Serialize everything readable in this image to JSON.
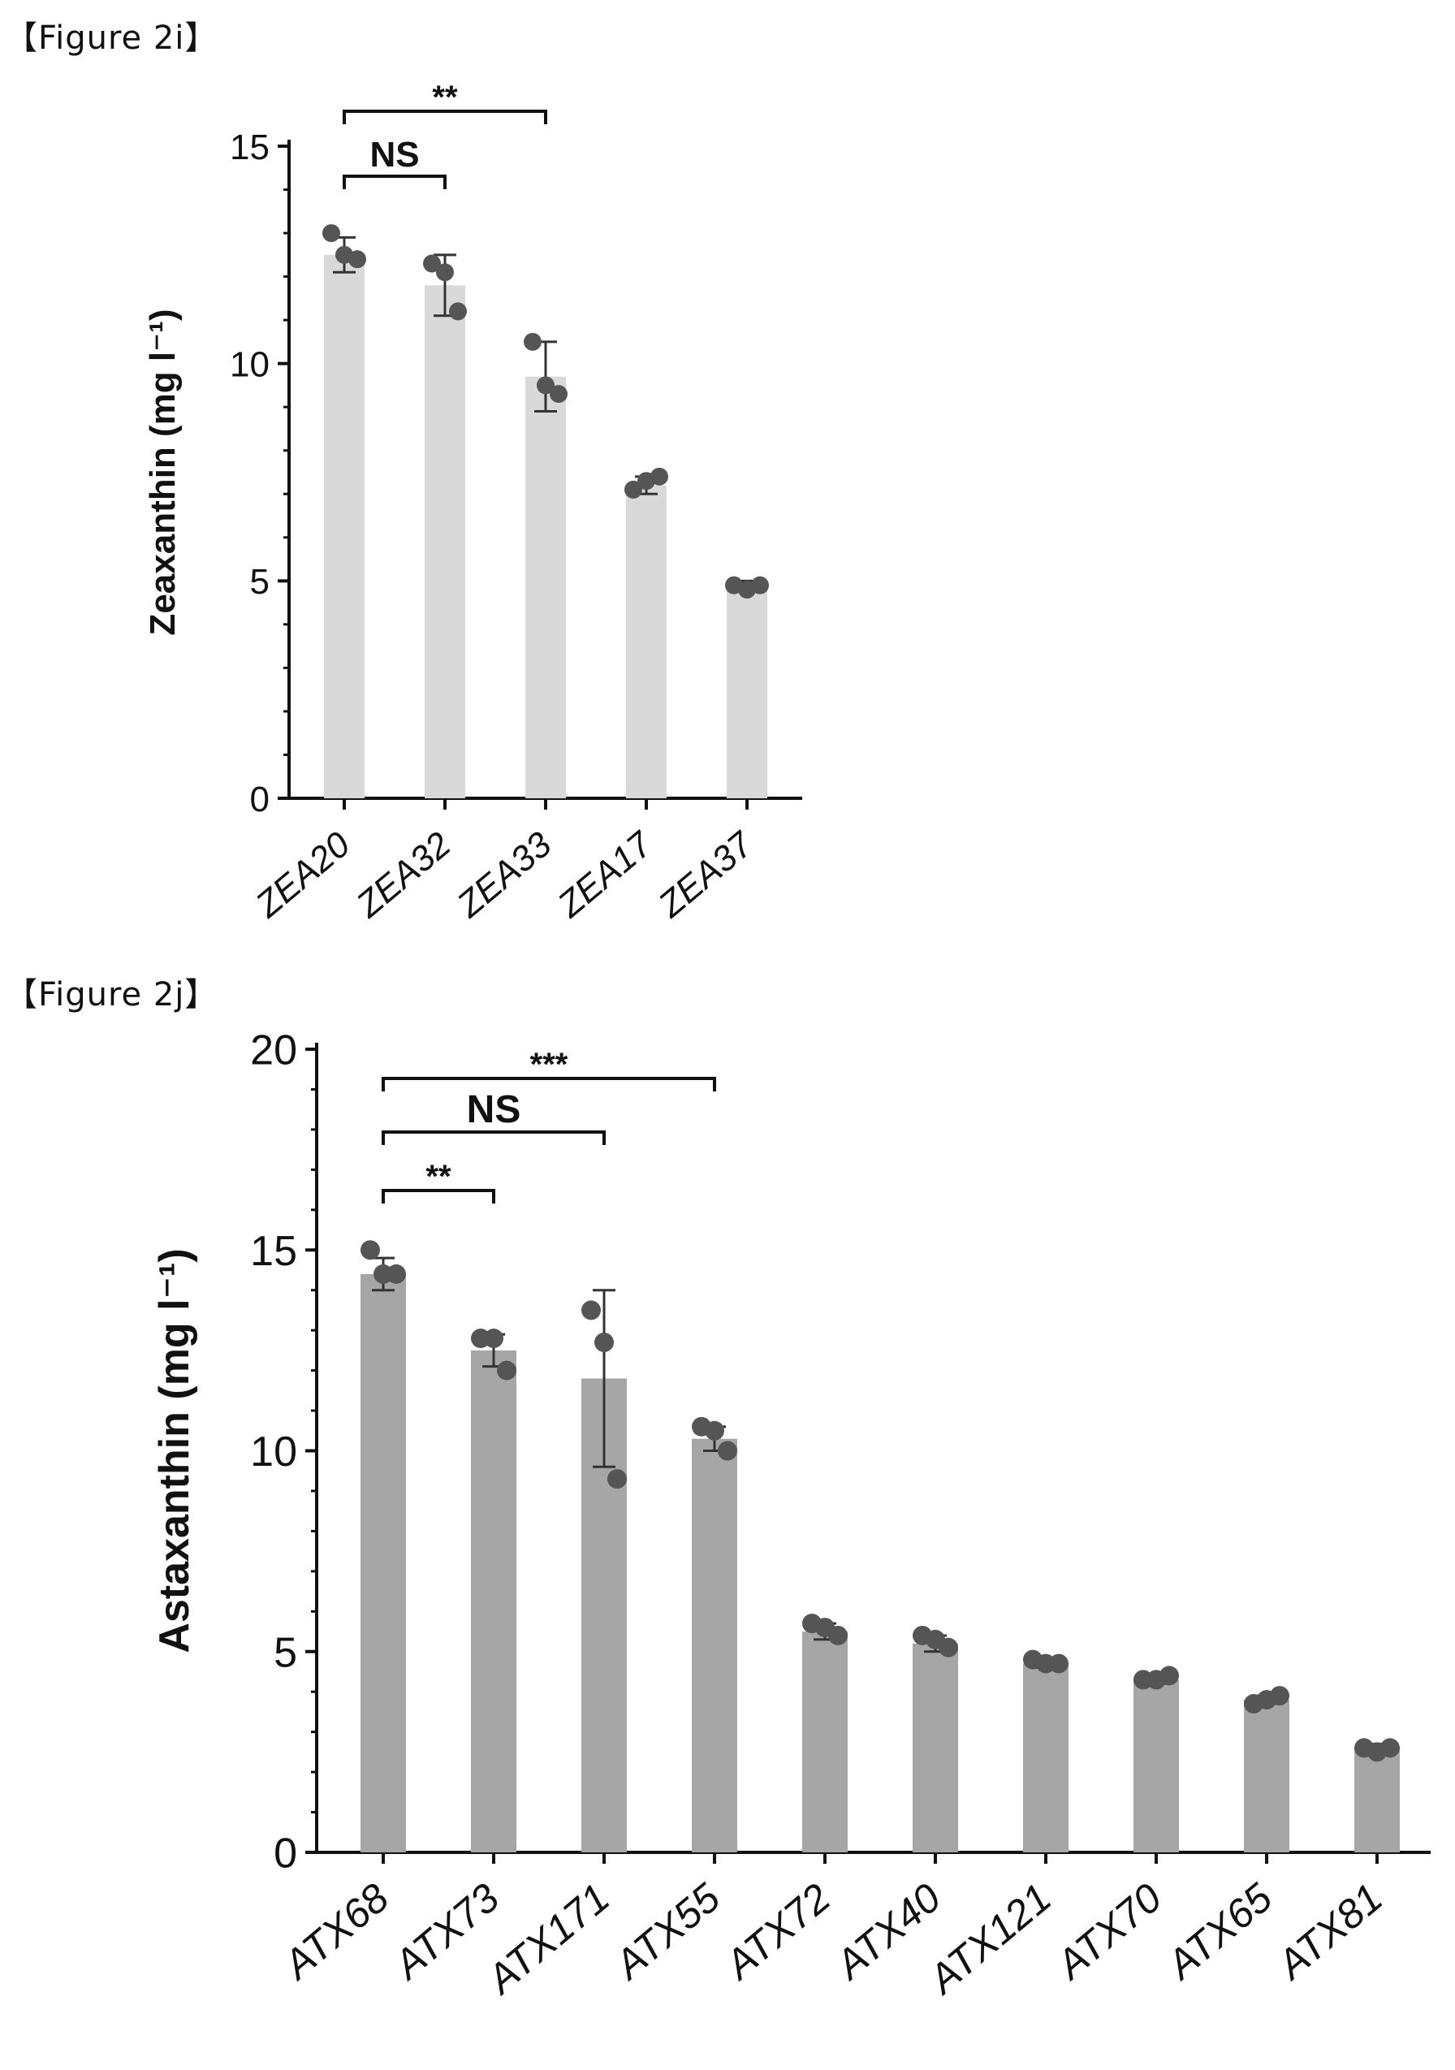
{
  "figures": [
    {
      "label": "【Figure 2i】"
    },
    {
      "label": "【Figure 2j】"
    }
  ],
  "chart_data": [
    {
      "type": "bar",
      "title": "",
      "xlabel": "",
      "ylabel": "Zeaxanthin (mg l⁻¹)",
      "ylim": [
        0,
        15
      ],
      "yticks": [
        0,
        5,
        10,
        15
      ],
      "categories": [
        "ZEA20",
        "ZEA32",
        "ZEA33",
        "ZEA17",
        "ZEA37"
      ],
      "values": [
        12.5,
        11.8,
        9.7,
        7.2,
        4.9
      ],
      "errors": [
        0.4,
        0.7,
        0.8,
        0.2,
        0.1
      ],
      "points": [
        [
          13.0,
          12.5,
          12.4
        ],
        [
          12.3,
          12.1,
          11.2
        ],
        [
          10.5,
          9.5,
          9.3
        ],
        [
          7.1,
          7.3,
          7.4
        ],
        [
          4.9,
          4.8,
          4.9
        ]
      ],
      "bar_color": "#d9d9d9",
      "point_color": "#555555",
      "significance": [
        {
          "from": 0,
          "to": 1,
          "label": "NS"
        },
        {
          "from": 0,
          "to": 2,
          "label": "**"
        }
      ]
    },
    {
      "type": "bar",
      "title": "",
      "xlabel": "",
      "ylabel": "Astaxanthin (mg l⁻¹)",
      "ylim": [
        0,
        20
      ],
      "yticks": [
        0,
        5,
        10,
        15,
        20
      ],
      "categories": [
        "ATX68",
        "ATX73",
        "ATX171",
        "ATX55",
        "ATX72",
        "ATX40",
        "ATX121",
        "ATX70",
        "ATX65",
        "ATX81"
      ],
      "values": [
        14.4,
        12.5,
        11.8,
        10.3,
        5.5,
        5.2,
        4.7,
        4.3,
        3.8,
        2.6
      ],
      "errors": [
        0.4,
        0.4,
        2.2,
        0.3,
        0.2,
        0.2,
        0.1,
        0.1,
        0.1,
        0.1
      ],
      "points": [
        [
          15.0,
          14.4,
          14.4
        ],
        [
          12.8,
          12.8,
          12.0
        ],
        [
          13.5,
          12.7,
          9.3
        ],
        [
          10.6,
          10.5,
          10.0
        ],
        [
          5.7,
          5.6,
          5.4
        ],
        [
          5.4,
          5.3,
          5.1
        ],
        [
          4.8,
          4.7,
          4.7
        ],
        [
          4.3,
          4.3,
          4.4
        ],
        [
          3.7,
          3.8,
          3.9
        ],
        [
          2.6,
          2.5,
          2.6
        ]
      ],
      "bar_color": "#a6a6a6",
      "point_color": "#555555",
      "significance": [
        {
          "from": 0,
          "to": 1,
          "label": "**"
        },
        {
          "from": 0,
          "to": 2,
          "label": "NS"
        },
        {
          "from": 0,
          "to": 3,
          "label": "***"
        }
      ]
    }
  ]
}
